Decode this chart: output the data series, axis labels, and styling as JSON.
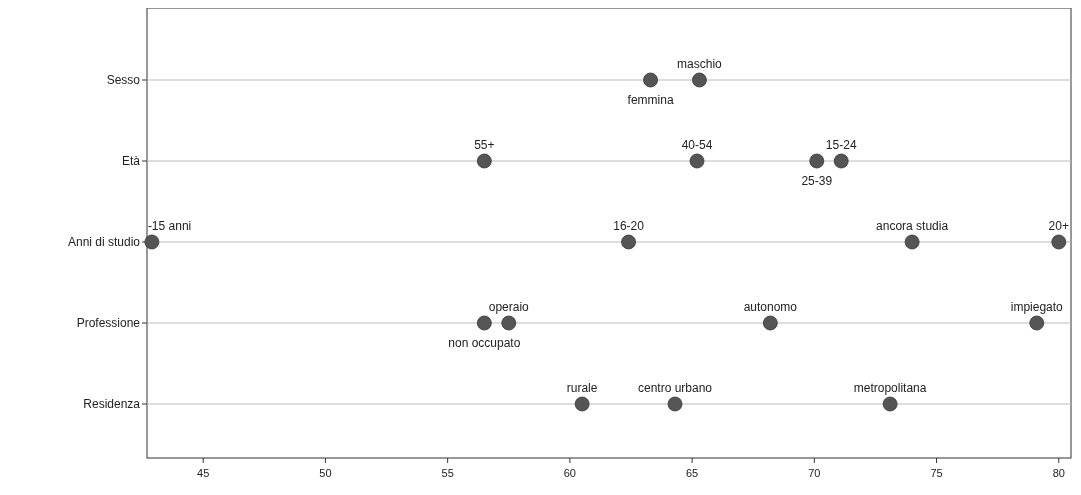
{
  "chart_data": {
    "type": "scatter",
    "orientation": "horizontal",
    "categories": [
      "Sesso",
      "Età",
      "Anni di studio",
      "Professione",
      "Residenza"
    ],
    "xlim": [
      42.7,
      80.5
    ],
    "xticks": [
      45,
      50,
      55,
      60,
      65,
      70,
      75,
      80
    ],
    "grid": "y",
    "marker": "circle",
    "series": [
      {
        "name": "femmina",
        "color": "#555555",
        "x": [
          "Sesso"
        ],
        "values": [
          63.3
        ]
      },
      {
        "name": "maschio",
        "color": "#555555",
        "x": [
          "Sesso"
        ],
        "values": [
          65.3
        ]
      },
      {
        "name": "55+",
        "color": "#555555",
        "x": [
          "Età"
        ],
        "values": [
          56.5
        ]
      },
      {
        "name": "40-54",
        "color": "#555555",
        "x": [
          "Età"
        ],
        "values": [
          65.2
        ]
      },
      {
        "name": "25-39",
        "color": "#555555",
        "x": [
          "Età"
        ],
        "values": [
          70.1
        ]
      },
      {
        "name": "15-24",
        "color": "#555555",
        "x": [
          "Età"
        ],
        "values": [
          71.1
        ]
      },
      {
        "name": "-15 anni",
        "color": "#555555",
        "x": [
          "Anni di studio"
        ],
        "values": [
          42.9
        ]
      },
      {
        "name": "16-20",
        "color": "#555555",
        "x": [
          "Anni di studio"
        ],
        "values": [
          62.4
        ]
      },
      {
        "name": "ancora studia",
        "color": "#555555",
        "x": [
          "Anni di studio"
        ],
        "values": [
          74.0
        ]
      },
      {
        "name": "20+",
        "color": "#555555",
        "x": [
          "Anni di studio"
        ],
        "values": [
          80.0
        ]
      },
      {
        "name": "non occupato",
        "color": "#555555",
        "x": [
          "Professione"
        ],
        "values": [
          56.5
        ]
      },
      {
        "name": "operaio",
        "color": "#555555",
        "x": [
          "Professione"
        ],
        "values": [
          57.5
        ]
      },
      {
        "name": "autonomo",
        "color": "#555555",
        "x": [
          "Professione"
        ],
        "values": [
          68.2
        ]
      },
      {
        "name": "impiegato",
        "color": "#555555",
        "x": [
          "Professione"
        ],
        "values": [
          79.1
        ]
      },
      {
        "name": "rurale",
        "color": "#555555",
        "x": [
          "Residenza"
        ],
        "values": [
          60.5
        ]
      },
      {
        "name": "centro urbano",
        "color": "#555555",
        "x": [
          "Residenza"
        ],
        "values": [
          64.3
        ]
      },
      {
        "name": "metropolitana",
        "color": "#555555",
        "x": [
          "Residenza"
        ],
        "values": [
          73.1
        ]
      }
    ]
  }
}
